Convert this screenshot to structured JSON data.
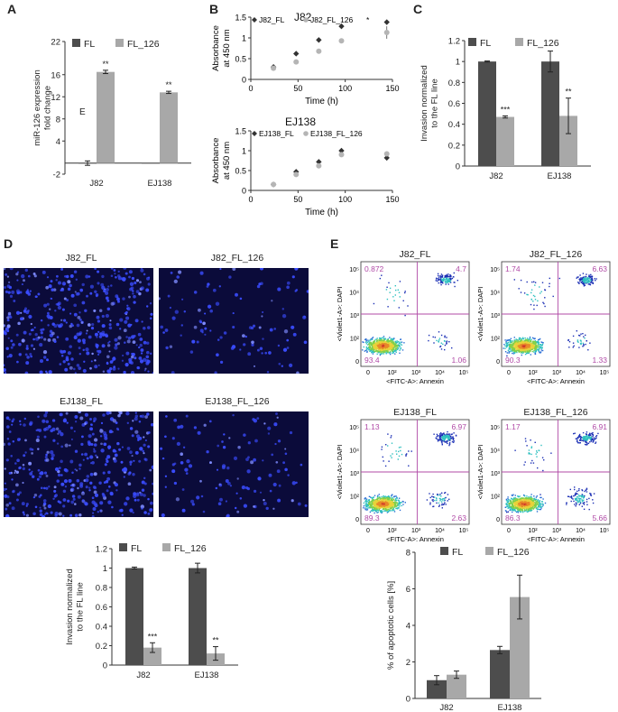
{
  "colors": {
    "fl": "#4d4d4d",
    "fl126": "#a8a8a8",
    "accent": "#b04aa6",
    "nuclei": "#3a4cff"
  },
  "panel_labels": {
    "a": "A",
    "b": "B",
    "c": "C",
    "d": "D",
    "e": "E"
  },
  "legend": {
    "fl": "FL",
    "fl126": "FL_126",
    "b_fl_j82": "J82_FL",
    "b_fl126_j82": "J82_FL_126",
    "b_fl_ej": "EJ138_FL",
    "b_fl126_ej": "EJ138_FL_126"
  },
  "panel_b": {
    "title_top": "J82",
    "title_bottom": "EJ138"
  },
  "panel_d": {
    "images": [
      "J82_FL",
      "J82_FL_126",
      "EJ138_FL",
      "EJ138_FL_126"
    ]
  },
  "panel_e": {
    "flow": [
      {
        "title": "J82_FL",
        "q": [
          "0.872",
          "4.7",
          "93.4",
          "1.06"
        ]
      },
      {
        "title": "J82_FL_126",
        "q": [
          "1.74",
          "6.63",
          "90.3",
          "1.33"
        ]
      },
      {
        "title": "EJ138_FL",
        "q": [
          "1.13",
          "6.97",
          "89.3",
          "2.63"
        ]
      },
      {
        "title": "EJ138_FL_126",
        "q": [
          "1.17",
          "6.91",
          "86.3",
          "5.66"
        ]
      }
    ],
    "flow_xlabel": "<FITC-A>: Annexin",
    "flow_ylabel": "<Violet1-A>: DAPI",
    "flow_xticks": [
      "0",
      "10²",
      "10³",
      "10⁴",
      "10⁵"
    ],
    "flow_yticks": [
      "10⁵",
      "10⁴",
      "10³",
      "10²",
      "0"
    ]
  },
  "chart_data": [
    {
      "id": "A",
      "type": "bar",
      "categories": [
        "J82",
        "EJ138"
      ],
      "series": [
        {
          "name": "FL",
          "values": [
            0,
            0
          ],
          "err": [
            0.4,
            0
          ]
        },
        {
          "name": "FL_126",
          "values": [
            16.5,
            12.8
          ],
          "err": [
            0.3,
            0.2
          ]
        }
      ],
      "sig": [
        "**",
        "**"
      ],
      "ylabel": "miR-126 expression fold change",
      "ylim": [
        -2,
        22
      ],
      "yticks": [
        -2,
        4,
        8,
        12,
        16,
        22
      ],
      "annotation": "E"
    },
    {
      "id": "B1",
      "type": "scatter",
      "title": "J82",
      "series": [
        {
          "name": "J82_FL",
          "x": [
            24,
            48,
            72,
            96,
            144
          ],
          "y": [
            0.3,
            0.62,
            0.95,
            1.28,
            1.38
          ],
          "err": [
            0.03,
            0.03,
            0.04,
            0.04,
            0.06
          ]
        },
        {
          "name": "J82_FL_126",
          "x": [
            24,
            48,
            72,
            96,
            144
          ],
          "y": [
            0.27,
            0.42,
            0.68,
            0.93,
            1.13
          ],
          "err": [
            0.03,
            0.03,
            0.04,
            0.05,
            0.15
          ]
        }
      ],
      "xlabel": "Time (h)",
      "ylabel": "Absorbance at 450 nm",
      "xlim": [
        0,
        150
      ],
      "ylim": [
        0,
        1.5
      ],
      "xticks": [
        0,
        50,
        100,
        150
      ],
      "yticks": [
        0,
        0.5,
        1,
        1.5
      ],
      "annotation": "*"
    },
    {
      "id": "B2",
      "type": "scatter",
      "title": "EJ138",
      "series": [
        {
          "name": "EJ138_FL",
          "x": [
            24,
            48,
            72,
            96,
            144
          ],
          "y": [
            0.15,
            0.47,
            0.72,
            1.0,
            0.82
          ],
          "err": [
            0.02,
            0.03,
            0.04,
            0.06,
            0.06
          ]
        },
        {
          "name": "EJ138_FL_126",
          "x": [
            24,
            48,
            72,
            96,
            144
          ],
          "y": [
            0.15,
            0.4,
            0.62,
            0.9,
            0.92
          ],
          "err": [
            0.02,
            0.03,
            0.04,
            0.05,
            0.05
          ]
        }
      ],
      "xlabel": "Time (h)",
      "ylabel": "Absorbance at 450 nm",
      "xlim": [
        0,
        150
      ],
      "ylim": [
        0,
        1.5
      ],
      "xticks": [
        0,
        50,
        100,
        150
      ],
      "yticks": [
        0,
        0.5,
        1,
        1.5
      ]
    },
    {
      "id": "C",
      "type": "bar",
      "categories": [
        "J82",
        "EJ138"
      ],
      "series": [
        {
          "name": "FL",
          "values": [
            1.0,
            1.0
          ],
          "err": [
            0.005,
            0.1
          ]
        },
        {
          "name": "FL_126",
          "values": [
            0.47,
            0.48
          ],
          "err": [
            0.01,
            0.17
          ]
        }
      ],
      "sig": [
        "***",
        "**"
      ],
      "ylabel": "Invasion normalized to the FL line",
      "ylim": [
        0,
        1.2
      ],
      "yticks": [
        0,
        0.2,
        0.4,
        0.6,
        0.8,
        1,
        1.2
      ]
    },
    {
      "id": "D",
      "type": "bar",
      "categories": [
        "J82",
        "EJ138"
      ],
      "series": [
        {
          "name": "FL",
          "values": [
            1.0,
            1.0
          ],
          "err": [
            0.01,
            0.05
          ]
        },
        {
          "name": "FL_126",
          "values": [
            0.18,
            0.12
          ],
          "err": [
            0.05,
            0.07
          ]
        }
      ],
      "sig": [
        "***",
        "**"
      ],
      "ylabel": "Invasion normalized to the FL line",
      "ylim": [
        0,
        1.2
      ],
      "yticks": [
        0,
        0.2,
        0.4,
        0.6,
        0.8,
        1,
        1.2
      ]
    },
    {
      "id": "E",
      "type": "bar",
      "categories": [
        "J82",
        "EJ138"
      ],
      "series": [
        {
          "name": "FL",
          "values": [
            1.0,
            2.65
          ],
          "err": [
            0.25,
            0.2
          ]
        },
        {
          "name": "FL_126",
          "values": [
            1.3,
            5.55
          ],
          "err": [
            0.2,
            1.2
          ]
        }
      ],
      "ylabel": "% of apoptotic cells [%]",
      "ylim": [
        0,
        8
      ],
      "yticks": [
        0,
        2,
        4,
        6,
        8
      ]
    }
  ]
}
